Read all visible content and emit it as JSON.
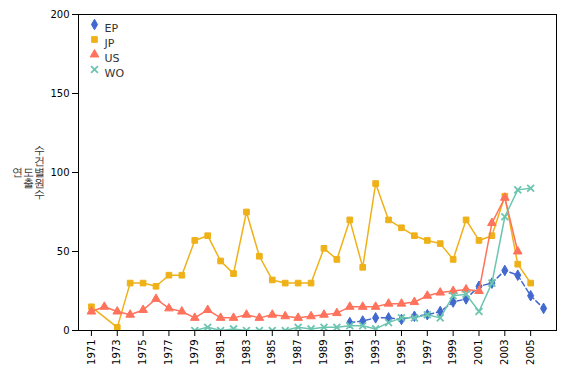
{
  "chart_data": {
    "type": "line",
    "ylabel": "수\n건\n연도별\n출원\n수",
    "x": [
      1971,
      1972,
      1973,
      1974,
      1975,
      1976,
      1977,
      1978,
      1979,
      1980,
      1981,
      1982,
      1983,
      1984,
      1985,
      1986,
      1987,
      1988,
      1989,
      1990,
      1991,
      1992,
      1993,
      1994,
      1995,
      1996,
      1997,
      1998,
      1999,
      2000,
      2001,
      2002,
      2003,
      2004,
      2005,
      2006
    ],
    "series": [
      {
        "name": "EP",
        "marker": "diamond",
        "line_style": "dashed",
        "values": [
          null,
          null,
          null,
          null,
          null,
          null,
          null,
          null,
          null,
          null,
          null,
          null,
          null,
          null,
          null,
          null,
          null,
          null,
          null,
          null,
          5,
          6,
          8,
          8,
          7,
          9,
          10,
          12,
          18,
          20,
          28,
          30,
          38,
          35,
          22,
          14
        ]
      },
      {
        "name": "JP",
        "marker": "square",
        "line_style": "solid",
        "values": [
          15,
          null,
          2,
          30,
          30,
          28,
          35,
          35,
          57,
          60,
          44,
          36,
          75,
          47,
          32,
          30,
          30,
          30,
          52,
          45,
          70,
          40,
          93,
          70,
          65,
          60,
          57,
          55,
          45,
          70,
          57,
          60,
          85,
          42,
          30,
          null
        ]
      },
      {
        "name": "US",
        "marker": "triangle",
        "line_style": "solid",
        "values": [
          12,
          15,
          12,
          10,
          13,
          20,
          14,
          12,
          8,
          13,
          8,
          8,
          10,
          8,
          10,
          9,
          8,
          9,
          10,
          11,
          15,
          15,
          15,
          17,
          17,
          18,
          22,
          24,
          25,
          26,
          25,
          68,
          84,
          50,
          null,
          null
        ]
      },
      {
        "name": "WO",
        "marker": "times",
        "line_style": "solid",
        "values": [
          null,
          null,
          null,
          null,
          null,
          null,
          null,
          null,
          0,
          2,
          0,
          1,
          0,
          0,
          0,
          0,
          2,
          1,
          2,
          2,
          3,
          3,
          1,
          5,
          8,
          8,
          10,
          8,
          22,
          23,
          12,
          30,
          72,
          89,
          90,
          null
        ]
      }
    ],
    "xlim": [
      1970,
      2007
    ],
    "xticks": [
      1971,
      1973,
      1975,
      1977,
      1979,
      1981,
      1983,
      1985,
      1987,
      1989,
      1991,
      1993,
      1995,
      1997,
      1999,
      2001,
      2003,
      2005
    ],
    "ylim": [
      0,
      200
    ],
    "yticks": [
      0,
      50,
      100,
      150,
      200
    ],
    "grid": false,
    "legend": "upper left"
  }
}
